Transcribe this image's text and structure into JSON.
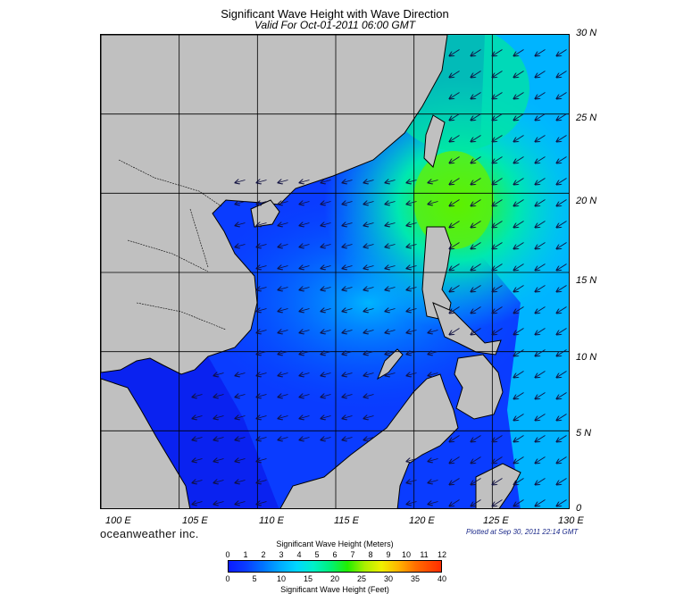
{
  "header": {
    "title": "Significant Wave Height with Wave Direction",
    "subtitle": "Valid For Oct-01-2011 06:00 GMT"
  },
  "map": {
    "lat_labels": [
      "30 N",
      "25 N",
      "20 N",
      "15 N",
      "10 N",
      "5 N",
      "0"
    ],
    "lon_labels": [
      "100 E",
      "105 E",
      "110 E",
      "115 E",
      "120 E",
      "125 E",
      "130 E"
    ],
    "colors": {
      "land": "#c0c0c0",
      "deep_blue": "#0a3cff",
      "light_blue": "#00c8ff",
      "green": "#22ee00",
      "grid": "#000000"
    },
    "wave_direction": "predominantly toward the southwest, arrows across the sea"
  },
  "branding": "oceanweather inc.",
  "plotted": "Plotted at Sep 30, 2011 22:14 GMT",
  "colorbar": {
    "top_title": "Significant Wave Height (Meters)",
    "top_ticks": [
      "0",
      "1",
      "2",
      "3",
      "4",
      "5",
      "6",
      "7",
      "8",
      "9",
      "10",
      "11",
      "12"
    ],
    "bottom_ticks": [
      "0",
      "5",
      "10",
      "15",
      "20",
      "25",
      "30",
      "35",
      "40"
    ],
    "bottom_title": "Significant Wave Height (Feet)"
  }
}
